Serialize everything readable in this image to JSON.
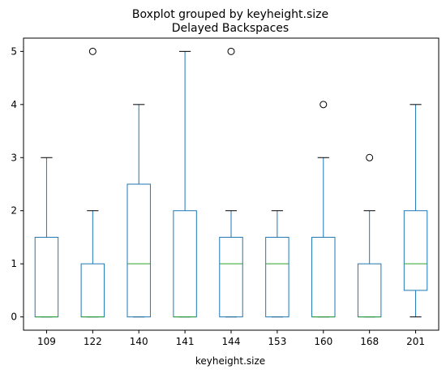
{
  "chart_data": {
    "type": "boxplot",
    "title": "Boxplot grouped by keyheight.size",
    "subtitle": "Delayed Backspaces",
    "xlabel": "keyheight.size",
    "ylabel": "",
    "ylim": [
      -0.25,
      5.25
    ],
    "yticks": [
      0,
      1,
      2,
      3,
      4,
      5
    ],
    "grid": false,
    "categories": [
      "109",
      "122",
      "140",
      "141",
      "144",
      "153",
      "160",
      "168",
      "201"
    ],
    "boxes": [
      {
        "category": "109",
        "whislo": 0,
        "q1": 0,
        "med": 0,
        "q3": 1.5,
        "whishi": 3,
        "fliers": []
      },
      {
        "category": "122",
        "whislo": 0,
        "q1": 0,
        "med": 0,
        "q3": 1,
        "whishi": 2,
        "fliers": [
          5
        ]
      },
      {
        "category": "140",
        "whislo": 0,
        "q1": 0,
        "med": 1,
        "q3": 2.5,
        "whishi": 4,
        "fliers": []
      },
      {
        "category": "141",
        "whislo": 0,
        "q1": 0,
        "med": 0,
        "q3": 2,
        "whishi": 5,
        "fliers": []
      },
      {
        "category": "144",
        "whislo": 0,
        "q1": 0,
        "med": 1,
        "q3": 1.5,
        "whishi": 2,
        "fliers": [
          5
        ]
      },
      {
        "category": "153",
        "whislo": 0,
        "q1": 0,
        "med": 1,
        "q3": 1.5,
        "whishi": 2,
        "fliers": []
      },
      {
        "category": "160",
        "whislo": 0,
        "q1": 0,
        "med": 0,
        "q3": 1.5,
        "whishi": 3,
        "fliers": [
          4
        ]
      },
      {
        "category": "168",
        "whislo": 0,
        "q1": 0,
        "med": 0,
        "q3": 1,
        "whishi": 2,
        "fliers": [
          3
        ]
      },
      {
        "category": "201",
        "whislo": 0,
        "q1": 0.5,
        "med": 1,
        "q3": 2,
        "whishi": 4,
        "fliers": []
      }
    ],
    "colors": {
      "box": "#1f77b4",
      "median": "#2ca02c",
      "whisker_cap": "#000000",
      "flier": "#000000"
    }
  }
}
